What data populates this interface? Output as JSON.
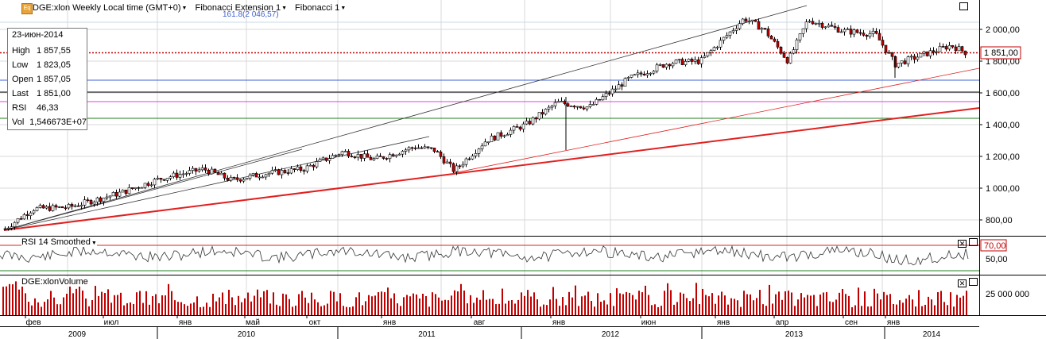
{
  "header": {
    "symbol_icon": "Eq",
    "title": "DGE:xlon Weekly Local time (GMT+0)",
    "indicator1": "Fibonacci Extension 1",
    "indicator2": "Fibonacci 1",
    "fib_label": "161.8(2 046,57)"
  },
  "info": {
    "date": "23-июн-2014",
    "rows": [
      {
        "k": "High",
        "v": "1 857,55"
      },
      {
        "k": "Low",
        "v": "1 823,05"
      },
      {
        "k": "Open",
        "v": "1 857,05"
      },
      {
        "k": "Last",
        "v": "1 851,00"
      },
      {
        "k": "RSI",
        "v": "46,33"
      },
      {
        "k": "Vol",
        "v": "1,546673E+07"
      }
    ]
  },
  "price_axis": {
    "ticks": [
      "2 000,00",
      "1 800,00",
      "1 600,00",
      "1 400,00",
      "1 200,00",
      "1 000,00",
      "800,00"
    ],
    "last_label": "1 851,00"
  },
  "rsi_pane": {
    "title": "RSI 14 Smoothed",
    "ticks": [
      "70,00",
      "50,00"
    ]
  },
  "volume_pane": {
    "title": "DGE:xlonVolume",
    "ticks": [
      "25 000 000"
    ]
  },
  "time_axis": {
    "months": [
      "фев",
      "июл",
      "янв",
      "май",
      "окт",
      "янв",
      "авг",
      "янв",
      "июн",
      "янв",
      "апр",
      "сен",
      "янв"
    ],
    "years": [
      "2009",
      "2010",
      "2011",
      "2012",
      "2013",
      "2014"
    ]
  },
  "colors": {
    "up": "#ffffff",
    "down": "#c00000",
    "trend_red": "#e02020",
    "dotted_last": "#c00000",
    "fib_blue": "#4060d0",
    "fib_magenta": "#e040e0",
    "fib_green": "#208020",
    "rsi_line": "#e02020"
  },
  "chart_data": {
    "type": "candlestick",
    "x": [
      "2009-02",
      "2009-07",
      "2010-01",
      "2010-05",
      "2010-10",
      "2011-01",
      "2011-08",
      "2012-01",
      "2012-06",
      "2013-01",
      "2013-04",
      "2013-09",
      "2014-01",
      "2014-06"
    ],
    "series": [
      {
        "values": [
          745,
          900,
          1000,
          1085,
          1100,
          1200,
          1100,
          1530,
          1700,
          2000,
          1900,
          1950,
          1820,
          1851
        ]
      }
    ],
    "ylim": [
      700,
      2160
    ],
    "last": 1851,
    "high": 1857.55,
    "low": 1823.05,
    "open": 1857.05,
    "rsi": 46.33,
    "volume": 15466730,
    "fib_extension_label": "161.8(2 046,57)",
    "fib_levels": [
      1680,
      1600,
      1540,
      1440
    ],
    "grid": true
  }
}
